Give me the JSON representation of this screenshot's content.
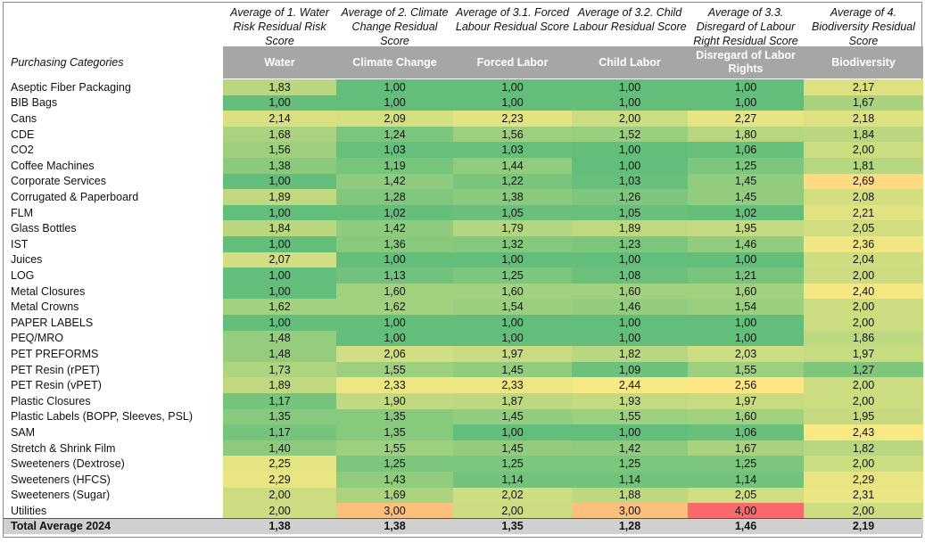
{
  "chart_data": {
    "type": "table",
    "corner_label": "Purchasing Categories",
    "columns": [
      {
        "top_label": "Average of 1. Water Risk Residual Risk Score",
        "header": "Water"
      },
      {
        "top_label": "Average of 2. Climate Change Residual Score",
        "header": "Climate Change"
      },
      {
        "top_label": "Average of 3.1. Forced Labour Residual Score",
        "header": "Forced Labor"
      },
      {
        "top_label": "Average of 3.2. Child Labour Residual Score",
        "header": "Child Labor"
      },
      {
        "top_label": "Average of 3.3. Disregard of Labour Right Residual Score",
        "header": "Disregard of Labor Rights"
      },
      {
        "top_label": "Average of 4. Biodiversity Residual Score",
        "header": "Biodiversity"
      }
    ],
    "rows": [
      {
        "category": "Aseptic Fiber Packaging",
        "values": [
          "1,83",
          "1,00",
          "1,00",
          "1,00",
          "1,00",
          "2,17"
        ]
      },
      {
        "category": "BIB Bags",
        "values": [
          "1,00",
          "1,00",
          "1,00",
          "1,00",
          "1,00",
          "1,67"
        ]
      },
      {
        "category": "Cans",
        "values": [
          "2,14",
          "2,09",
          "2,23",
          "2,00",
          "2,27",
          "2,18"
        ]
      },
      {
        "category": "CDE",
        "values": [
          "1,68",
          "1,24",
          "1,56",
          "1,52",
          "1,80",
          "1,84"
        ]
      },
      {
        "category": "CO2",
        "values": [
          "1,56",
          "1,03",
          "1,03",
          "1,00",
          "1,06",
          "2,00"
        ]
      },
      {
        "category": "Coffee Machines",
        "values": [
          "1,38",
          "1,19",
          "1,44",
          "1,00",
          "1,25",
          "1,81"
        ]
      },
      {
        "category": "Corporate Services",
        "values": [
          "1,00",
          "1,42",
          "1,22",
          "1,03",
          "1,45",
          "2,69"
        ]
      },
      {
        "category": "Corrugated & Paperboard",
        "values": [
          "1,89",
          "1,28",
          "1,38",
          "1,26",
          "1,45",
          "2,08"
        ]
      },
      {
        "category": "FLM",
        "values": [
          "1,00",
          "1,02",
          "1,05",
          "1,05",
          "1,02",
          "2,21"
        ]
      },
      {
        "category": "Glass Bottles",
        "values": [
          "1,84",
          "1,42",
          "1,79",
          "1,89",
          "1,95",
          "2,05"
        ]
      },
      {
        "category": "IST",
        "values": [
          "1,00",
          "1,36",
          "1,32",
          "1,23",
          "1,46",
          "2,36"
        ]
      },
      {
        "category": "Juices",
        "values": [
          "2,07",
          "1,00",
          "1,00",
          "1,00",
          "1,00",
          "2,04"
        ]
      },
      {
        "category": "LOG",
        "values": [
          "1,00",
          "1,13",
          "1,25",
          "1,08",
          "1,21",
          "2,00"
        ]
      },
      {
        "category": "Metal Closures",
        "values": [
          "1,00",
          "1,60",
          "1,60",
          "1,60",
          "1,60",
          "2,40"
        ]
      },
      {
        "category": "Metal Crowns",
        "values": [
          "1,62",
          "1,62",
          "1,54",
          "1,46",
          "1,54",
          "2,00"
        ]
      },
      {
        "category": "PAPER LABELS",
        "values": [
          "1,00",
          "1,00",
          "1,00",
          "1,00",
          "1,00",
          "2,00"
        ]
      },
      {
        "category": "PEQ/MRO",
        "values": [
          "1,48",
          "1,00",
          "1,00",
          "1,00",
          "1,00",
          "1,86"
        ]
      },
      {
        "category": "PET PREFORMS",
        "values": [
          "1,48",
          "2,06",
          "1,97",
          "1,82",
          "2,03",
          "1,97"
        ]
      },
      {
        "category": "PET Resin (rPET)",
        "values": [
          "1,73",
          "1,55",
          "1,45",
          "1,09",
          "1,55",
          "1,27"
        ]
      },
      {
        "category": "PET Resin (vPET)",
        "values": [
          "1,89",
          "2,33",
          "2,33",
          "2,44",
          "2,56",
          "2,00"
        ]
      },
      {
        "category": "Plastic Closures",
        "values": [
          "1,17",
          "1,90",
          "1,87",
          "1,93",
          "1,97",
          "2,00"
        ]
      },
      {
        "category": "Plastic Labels (BOPP, Sleeves, PSL)",
        "values": [
          "1,35",
          "1,35",
          "1,45",
          "1,55",
          "1,60",
          "1,95"
        ]
      },
      {
        "category": "SAM",
        "values": [
          "1,17",
          "1,35",
          "1,00",
          "1,00",
          "1,06",
          "2,43"
        ]
      },
      {
        "category": "Stretch & Shrink Film",
        "values": [
          "1,40",
          "1,55",
          "1,45",
          "1,42",
          "1,67",
          "1,82"
        ]
      },
      {
        "category": "Sweeteners (Dextrose)",
        "values": [
          "2,25",
          "1,25",
          "1,25",
          "1,25",
          "1,25",
          "2,00"
        ]
      },
      {
        "category": "Sweeteners (HFCS)",
        "values": [
          "2,29",
          "1,43",
          "1,14",
          "1,14",
          "1,14",
          "2,29"
        ]
      },
      {
        "category": "Sweeteners (Sugar)",
        "values": [
          "2,00",
          "1,69",
          "2,02",
          "1,88",
          "2,05",
          "2,31"
        ]
      },
      {
        "category": "Utilities",
        "values": [
          "2,00",
          "3,00",
          "2,00",
          "3,00",
          "4,00",
          "2,00"
        ]
      }
    ],
    "total": {
      "category": "Total Average 2024",
      "values": [
        "1,38",
        "1,38",
        "1,35",
        "1,28",
        "1,46",
        "2,19"
      ]
    },
    "color_scale": {
      "low": "#63be7b",
      "mid": "#ffeb84",
      "high": "#f8696b"
    }
  }
}
